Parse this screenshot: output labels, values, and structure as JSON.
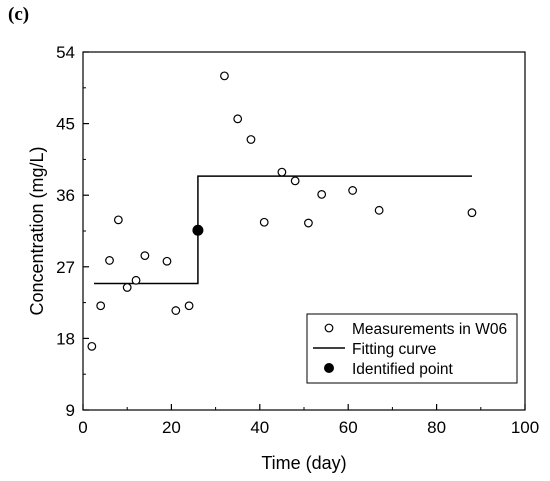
{
  "panel_label": "(c)",
  "chart_data": {
    "type": "scatter",
    "xlabel": "Time  (day)",
    "ylabel": "Concentration  (mg/L)",
    "xlim": [
      0,
      100
    ],
    "ylim": [
      9,
      54
    ],
    "x_ticks": [
      "0",
      "20",
      "40",
      "60",
      "80",
      "100"
    ],
    "y_ticks": [
      "9",
      "18",
      "27",
      "36",
      "45",
      "54"
    ],
    "grid": false,
    "legend_position": "bottom-right",
    "series": [
      {
        "name": "Measurements in W06",
        "kind": "scatter",
        "marker": "open-circle",
        "x": [
          2,
          4,
          6,
          8,
          10,
          12,
          14,
          19,
          21,
          24,
          32,
          35,
          38,
          41,
          45,
          48,
          51,
          54,
          61,
          67,
          88
        ],
        "y": [
          17.0,
          22.1,
          27.8,
          32.9,
          24.4,
          25.3,
          28.4,
          27.7,
          21.5,
          22.1,
          51.0,
          45.6,
          43.0,
          32.6,
          38.9,
          37.8,
          32.5,
          36.1,
          36.6,
          34.1,
          33.8
        ]
      },
      {
        "name": "Fitting curve",
        "kind": "line",
        "x": [
          2.5,
          26,
          26,
          88
        ],
        "y": [
          24.9,
          24.9,
          38.4,
          38.4
        ]
      },
      {
        "name": "Identified point",
        "kind": "scatter",
        "marker": "filled-circle",
        "x": [
          26
        ],
        "y": [
          31.6
        ]
      }
    ]
  }
}
